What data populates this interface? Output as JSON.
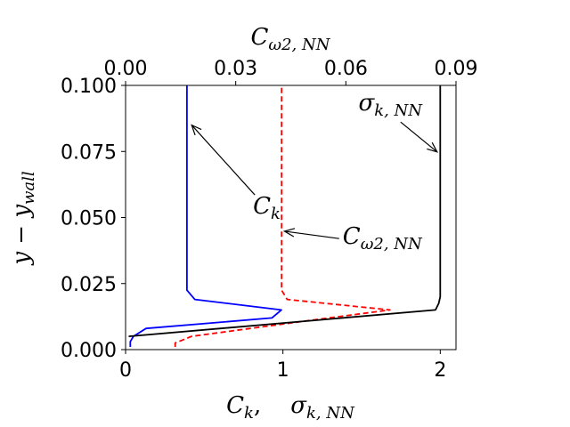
{
  "chart_data": {
    "type": "line",
    "xlabel_bottom": "C_k,    σ_k,NN",
    "xlabel_top": "C_ω2,NN",
    "ylabel": "y − y_wall",
    "xlim_bottom": [
      0,
      2.1
    ],
    "xlim_top": [
      0,
      0.09
    ],
    "ylim": [
      0,
      0.1
    ],
    "xticks_bottom": [
      {
        "value": 0,
        "label": "0"
      },
      {
        "value": 1,
        "label": "1"
      },
      {
        "value": 2,
        "label": "2"
      }
    ],
    "xticks_top": [
      {
        "value": 0.0,
        "label": "0.00"
      },
      {
        "value": 0.03,
        "label": "0.03"
      },
      {
        "value": 0.06,
        "label": "0.06"
      },
      {
        "value": 0.09,
        "label": "0.09"
      }
    ],
    "yticks": [
      {
        "value": 0.0,
        "label": "0.000"
      },
      {
        "value": 0.025,
        "label": "0.025"
      },
      {
        "value": 0.05,
        "label": "0.050"
      },
      {
        "value": 0.075,
        "label": "0.075"
      },
      {
        "value": 0.1,
        "label": "0.100"
      }
    ],
    "grid": false,
    "series": [
      {
        "key": "ck",
        "color": "#0000ff",
        "dash": "solid",
        "axis": "bottom",
        "points": [
          [
            0.03,
            0.001
          ],
          [
            0.03,
            0.003
          ],
          [
            0.05,
            0.005
          ],
          [
            0.13,
            0.008
          ],
          [
            0.93,
            0.012
          ],
          [
            0.99,
            0.015
          ],
          [
            0.44,
            0.019
          ],
          [
            0.39,
            0.0225
          ],
          [
            0.39,
            0.05
          ],
          [
            0.39,
            0.1
          ]
        ]
      },
      {
        "key": "cw2",
        "color": "#ff0000",
        "dash": "dashed",
        "axis": "top",
        "points": [
          [
            0.0135,
            0.001
          ],
          [
            0.0135,
            0.0025
          ],
          [
            0.018,
            0.005
          ],
          [
            0.05,
            0.011
          ],
          [
            0.072,
            0.015
          ],
          [
            0.044,
            0.019
          ],
          [
            0.0425,
            0.0225
          ],
          [
            0.0425,
            0.05
          ],
          [
            0.0425,
            0.1
          ]
        ]
      },
      {
        "key": "sk",
        "color": "#000000",
        "dash": "solid",
        "axis": "bottom",
        "points": [
          [
            0.02,
            0.005
          ],
          [
            1.97,
            0.015
          ],
          [
            1.99,
            0.0175
          ],
          [
            2.0,
            0.02
          ],
          [
            2.0,
            0.05
          ],
          [
            2.0,
            0.1
          ]
        ]
      }
    ],
    "annotations": [
      {
        "key": "ck",
        "text_base": "C",
        "text_sub": "k",
        "text_xy": [
          0.81,
          0.0515
        ],
        "arrow_to": [
          0.42,
          0.085
        ]
      },
      {
        "key": "cw2",
        "text_base": "C",
        "text_sub": "ω2, NN",
        "text_xy": [
          1.38,
          0.04
        ],
        "arrow_to": [
          1.01,
          0.0448
        ]
      },
      {
        "key": "sk",
        "text_base": "σ",
        "text_sub": "k, NN",
        "text_xy": [
          1.48,
          0.0905
        ],
        "arrow_to": [
          1.98,
          0.0748
        ]
      }
    ]
  }
}
